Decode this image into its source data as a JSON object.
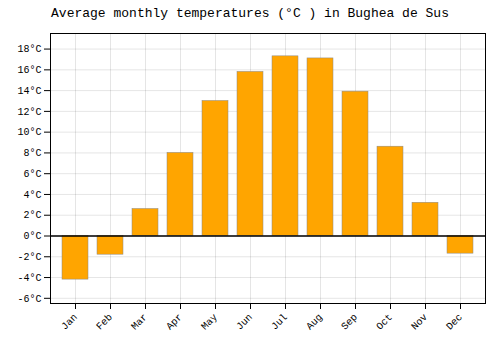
{
  "chart_data": {
    "type": "bar",
    "title": "Average monthly temperatures (°C ) in Bughea de Sus",
    "categories": [
      "Jan",
      "Feb",
      "Mar",
      "Apr",
      "May",
      "Jun",
      "Jul",
      "Aug",
      "Sep",
      "Oct",
      "Nov",
      "Dec"
    ],
    "values": [
      -4.2,
      -1.8,
      2.6,
      8.0,
      13.0,
      15.8,
      17.3,
      17.1,
      13.9,
      8.6,
      3.2,
      -1.7
    ],
    "color": "#FFA500",
    "ylim": [
      -6.5,
      19.5
    ],
    "yticks": [
      {
        "value": -6,
        "label": "-6°C"
      },
      {
        "value": -4,
        "label": "-4°C"
      },
      {
        "value": -2,
        "label": "-2°C"
      },
      {
        "value": 0,
        "label": "0°C"
      },
      {
        "value": 2,
        "label": "2°C"
      },
      {
        "value": 4,
        "label": "4°C"
      },
      {
        "value": 6,
        "label": "6°C"
      },
      {
        "value": 8,
        "label": "8°C"
      },
      {
        "value": 10,
        "label": "10°C"
      },
      {
        "value": 12,
        "label": "12°C"
      },
      {
        "value": 14,
        "label": "14°C"
      },
      {
        "value": 16,
        "label": "16°C"
      },
      {
        "value": 18,
        "label": "18°C"
      }
    ],
    "grid": true
  }
}
